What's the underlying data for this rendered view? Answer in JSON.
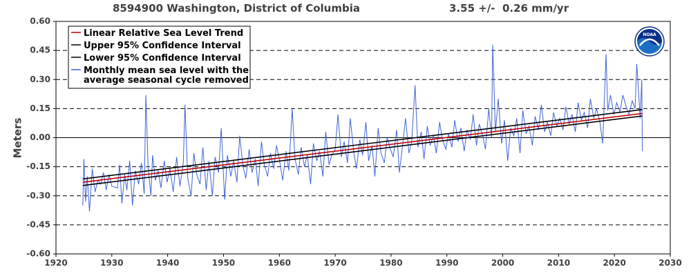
{
  "header": {
    "title": "8594900 Washington, District of Columbia",
    "trend": "3.55 +/-  0.26 mm/yr"
  },
  "logo": {
    "text": "NOAA",
    "icon": "noaa-logo"
  },
  "colors": {
    "trend": "#c00000",
    "ci": "#000000",
    "monthly": "#3f62d6",
    "grid": "#000000",
    "text": "#404040",
    "logo_outer": "#1d6fc4",
    "logo_inner": "#0a2f86"
  },
  "chart_data": {
    "type": "line",
    "title": "8594900 Washington, District of Columbia",
    "xlabel": "",
    "ylabel": "Meters",
    "xlim": [
      1920,
      2030
    ],
    "ylim": [
      -0.6,
      0.6
    ],
    "x_ticks": [
      1920,
      1930,
      1940,
      1950,
      1960,
      1970,
      1980,
      1990,
      2000,
      2010,
      2020,
      2030
    ],
    "x_tick_labels": [
      "1920",
      "1930",
      "1940",
      "1950",
      "1960",
      "1970",
      "1980",
      "1990",
      "2000",
      "2010",
      "2020",
      "2030"
    ],
    "y_ticks": [
      -0.6,
      -0.45,
      -0.3,
      -0.15,
      0.0,
      0.15,
      0.3,
      0.45,
      0.6
    ],
    "y_tick_labels": [
      "-0.60",
      "-0.45",
      "-0.30",
      "-0.15",
      "0.00",
      "0.15",
      "0.30",
      "0.45",
      "0.60"
    ],
    "grid": "horizontal dashed",
    "legend_position": "top-left",
    "legend": [
      "Linear Relative Sea Level Trend",
      "Upper 95% Confidence Interval",
      "Lower 95% Confidence Interval",
      "Monthly mean sea level with the|average seasonal cycle removed"
    ],
    "series": [
      {
        "name": "Linear Relative Sea Level Trend",
        "x": [
          1924.8,
          2025.0
        ],
        "y": [
          -0.23,
          0.125
        ]
      },
      {
        "name": "Upper 95% Confidence Interval",
        "x": [
          1924.8,
          2025.0
        ],
        "y": [
          -0.213,
          0.145
        ]
      },
      {
        "name": "Lower 95% Confidence Interval",
        "x": [
          1924.8,
          2025.0
        ],
        "y": [
          -0.247,
          0.112
        ]
      },
      {
        "name": "Monthly mean sea level with the average seasonal cycle removed",
        "x": [
          1924.8,
          1925.0,
          1925.3,
          1925.6,
          1926.0,
          1926.5,
          1927.0,
          1927.5,
          1928.0,
          1928.5,
          1929.0,
          1929.5,
          1930.0,
          1931.0,
          1931.4,
          1931.8,
          1932.3,
          1932.7,
          1933.2,
          1933.7,
          1934.2,
          1934.8,
          1935.3,
          1935.8,
          1936.1,
          1936.5,
          1937.0,
          1937.3,
          1937.8,
          1938.3,
          1938.8,
          1939.4,
          1939.9,
          1940.4,
          1941.0,
          1941.6,
          1942.2,
          1942.8,
          1943.1,
          1943.6,
          1944.2,
          1944.7,
          1945.2,
          1945.8,
          1946.3,
          1946.9,
          1947.4,
          1948.0,
          1948.5,
          1949.1,
          1949.6,
          1950.2,
          1950.7,
          1951.3,
          1951.8,
          1952.4,
          1952.9,
          1953.5,
          1954.0,
          1954.6,
          1955.1,
          1955.7,
          1956.2,
          1956.8,
          1957.3,
          1957.9,
          1958.4,
          1959.0,
          1959.5,
          1960.1,
          1960.6,
          1961.2,
          1961.7,
          1962.3,
          1962.8,
          1963.4,
          1963.9,
          1964.5,
          1965.0,
          1965.6,
          1966.1,
          1966.7,
          1967.2,
          1967.8,
          1968.3,
          1968.9,
          1969.4,
          1970.0,
          1970.5,
          1971.1,
          1971.6,
          1972.2,
          1972.7,
          1973.3,
          1973.8,
          1974.4,
          1974.9,
          1975.5,
          1976.0,
          1976.6,
          1977.1,
          1977.7,
          1978.2,
          1978.8,
          1979.3,
          1979.9,
          1980.4,
          1981.0,
          1981.5,
          1982.1,
          1982.6,
          1983.2,
          1983.7,
          1984.3,
          1984.8,
          1985.4,
          1985.9,
          1986.5,
          1987.0,
          1987.6,
          1988.1,
          1988.7,
          1989.2,
          1989.8,
          1990.3,
          1990.9,
          1991.4,
          1992.0,
          1992.5,
          1993.1,
          1993.6,
          1994.2,
          1994.7,
          1995.3,
          1995.8,
          1996.4,
          1996.9,
          1997.5,
          1998.0,
          1998.2,
          1998.7,
          1999.2,
          1999.8,
          2000.3,
          2000.9,
          2001.4,
          2002.0,
          2002.5,
          2003.1,
          2003.6,
          2004.2,
          2004.7,
          2005.3,
          2005.8,
          2006.4,
          2006.9,
          2007.5,
          2008.0,
          2008.6,
          2009.1,
          2009.7,
          2010.2,
          2010.8,
          2011.3,
          2011.9,
          2012.4,
          2013.0,
          2013.5,
          2014.1,
          2014.6,
          2015.2,
          2015.7,
          2016.3,
          2016.8,
          2017.4,
          2017.9,
          2018.5,
          2018.8,
          2019.3,
          2019.9,
          2020.4,
          2021.0,
          2021.5,
          2022.1,
          2022.6,
          2023.2,
          2023.7,
          2024.0,
          2024.3,
          2024.6,
          2024.9,
          2025.0
        ],
        "y": [
          -0.35,
          -0.11,
          -0.33,
          -0.2,
          -0.38,
          -0.16,
          -0.28,
          -0.22,
          -0.24,
          -0.18,
          -0.27,
          -0.19,
          -0.25,
          -0.26,
          -0.14,
          -0.34,
          -0.19,
          -0.27,
          -0.12,
          -0.35,
          -0.17,
          -0.24,
          -0.13,
          -0.29,
          0.22,
          -0.15,
          -0.3,
          -0.09,
          -0.22,
          -0.17,
          -0.26,
          -0.12,
          -0.23,
          -0.16,
          -0.28,
          -0.1,
          -0.25,
          -0.13,
          0.17,
          -0.21,
          -0.3,
          -0.08,
          -0.19,
          -0.24,
          -0.05,
          -0.27,
          -0.12,
          -0.3,
          -0.1,
          -0.18,
          0.05,
          -0.32,
          -0.09,
          -0.2,
          -0.12,
          -0.23,
          0.01,
          -0.15,
          -0.21,
          -0.06,
          -0.18,
          -0.11,
          -0.25,
          -0.02,
          -0.14,
          -0.2,
          -0.08,
          -0.16,
          -0.04,
          -0.13,
          -0.22,
          -0.07,
          -0.17,
          0.15,
          -0.11,
          -0.19,
          -0.05,
          -0.15,
          -0.09,
          -0.24,
          -0.03,
          -0.12,
          -0.07,
          -0.2,
          0.03,
          -0.14,
          -0.09,
          -0.06,
          0.12,
          -0.1,
          -0.02,
          -0.13,
          0.1,
          -0.07,
          -0.16,
          -0.01,
          -0.09,
          0.08,
          -0.12,
          -0.04,
          -0.2,
          0.05,
          -0.08,
          -0.13,
          0.0,
          -0.06,
          -0.1,
          0.04,
          -0.18,
          -0.03,
          0.1,
          -0.08,
          -0.02,
          0.27,
          -0.05,
          0.03,
          -0.11,
          0.06,
          -0.04,
          0.01,
          -0.08,
          0.08,
          -0.01,
          -0.06,
          0.02,
          -0.05,
          0.09,
          -0.02,
          0.05,
          -0.07,
          0.04,
          -0.01,
          0.12,
          -0.04,
          0.07,
          0.01,
          -0.06,
          0.15,
          0.0,
          0.48,
          0.03,
          0.2,
          -0.03,
          0.09,
          -0.12,
          0.05,
          0.01,
          0.1,
          -0.08,
          0.14,
          0.02,
          0.06,
          -0.04,
          0.11,
          0.04,
          0.17,
          0.03,
          0.08,
          0.01,
          0.13,
          0.06,
          0.1,
          0.04,
          0.16,
          0.07,
          0.12,
          0.03,
          0.18,
          0.09,
          0.13,
          0.05,
          0.2,
          0.1,
          0.15,
          0.08,
          -0.03,
          0.43,
          0.14,
          0.22,
          0.12,
          0.18,
          0.13,
          0.22,
          0.16,
          0.12,
          0.19,
          0.15,
          0.38,
          0.25,
          0.1,
          0.3,
          -0.07
        ]
      }
    ]
  }
}
